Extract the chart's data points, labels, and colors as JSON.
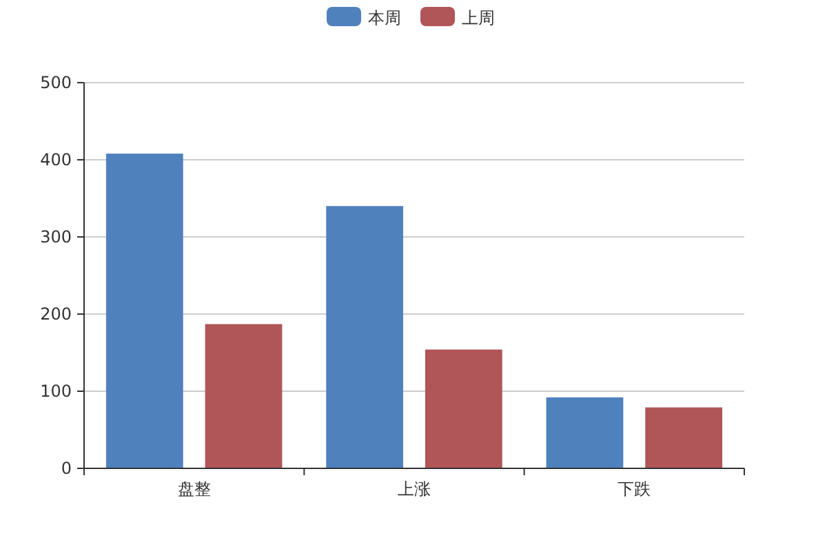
{
  "chart_data": {
    "type": "bar",
    "categories": [
      "盘整",
      "上涨",
      "下跌"
    ],
    "series": [
      {
        "name": "本周",
        "color": "#4f81bd",
        "values": [
          408,
          340,
          92
        ]
      },
      {
        "name": "上周",
        "color": "#b05558",
        "values": [
          187,
          154,
          79
        ]
      }
    ],
    "ylim": [
      0,
      500
    ],
    "yticks": [
      0,
      100,
      200,
      300,
      400,
      500
    ],
    "grid": "y",
    "legend": "top"
  }
}
